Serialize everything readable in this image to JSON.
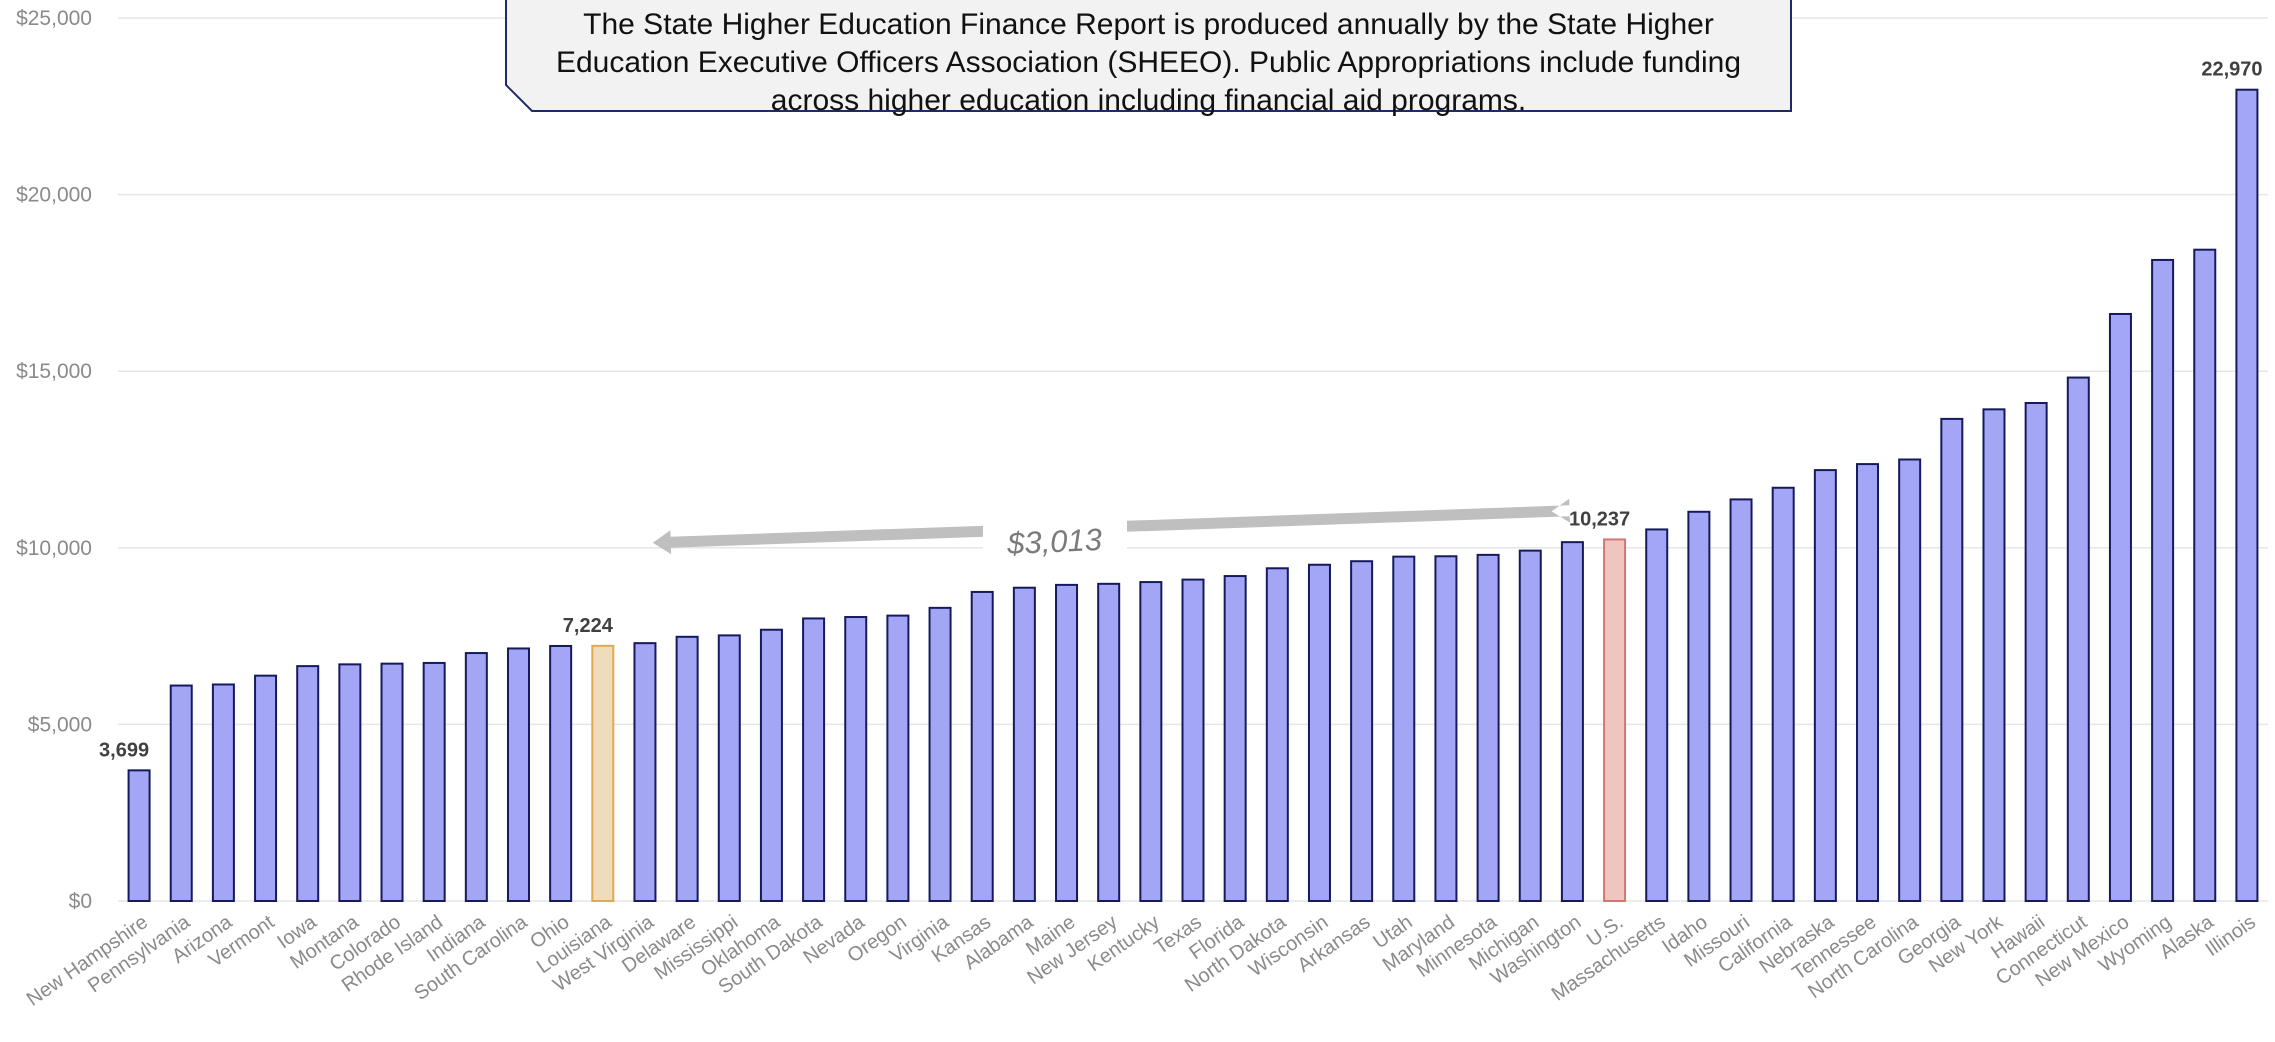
{
  "chart_data": {
    "type": "bar",
    "title": "",
    "xlabel": "",
    "ylabel": "",
    "ylim": [
      0,
      25000
    ],
    "yticks": [
      "$0",
      "$5,000",
      "$10,000",
      "$15,000",
      "$20,000",
      "$25,000"
    ],
    "grid": true,
    "categories": [
      "New Hampshire",
      "Pennsylvania",
      "Arizona",
      "Vermont",
      "Iowa",
      "Montana",
      "Colorado",
      "Rhode Island",
      "Indiana",
      "South Carolina",
      "Ohio",
      "Louisiana",
      "West Virginia",
      "Delaware",
      "Mississippi",
      "Oklahoma",
      "South Dakota",
      "Nevada",
      "Oregon",
      "Virginia",
      "Kansas",
      "Alabama",
      "Maine",
      "New Jersey",
      "Kentucky",
      "Texas",
      "Florida",
      "North Dakota",
      "Wisconsin",
      "Arkansas",
      "Utah",
      "Maryland",
      "Minnesota",
      "Michigan",
      "Washington",
      "U.S.",
      "Massachusetts",
      "Idaho",
      "Missouri",
      "California",
      "Nebraska",
      "Tennessee",
      "North Carolina",
      "Georgia",
      "New York",
      "Hawaii",
      "Connecticut",
      "New Mexico",
      "Wyoming",
      "Alaska",
      "Illinois"
    ],
    "values": [
      3699,
      6100,
      6130,
      6380,
      6650,
      6700,
      6720,
      6740,
      7020,
      7150,
      7220,
      7224,
      7300,
      7480,
      7520,
      7680,
      8000,
      8040,
      8080,
      8300,
      8750,
      8870,
      8950,
      8980,
      9030,
      9100,
      9200,
      9420,
      9520,
      9620,
      9750,
      9760,
      9800,
      9920,
      10160,
      10237,
      10520,
      11020,
      11370,
      11700,
      12200,
      12370,
      12500,
      13650,
      13920,
      14100,
      14820,
      16620,
      18150,
      18440,
      22970
    ],
    "data_labels": [
      {
        "category": "New Hampshire",
        "text": "3,699"
      },
      {
        "category": "Louisiana",
        "text": "7,224"
      },
      {
        "category": "U.S.",
        "text": "10,237"
      },
      {
        "category": "Illinois",
        "text": "22,970"
      }
    ],
    "highlight": {
      "Louisiana": {
        "fill": "#efdcbc",
        "stroke": "#e0a850"
      },
      "U.S.": {
        "fill": "#f0c4c0",
        "stroke": "#d07870"
      }
    },
    "colors": {
      "bar_fill": "#a3a6f5",
      "bar_stroke": "#151a5c",
      "grid": "#e6e6e6",
      "arrow": "#bfbfbf"
    },
    "annotation": {
      "text": "$3,013",
      "from": "U.S.",
      "to": "Louisiana"
    },
    "callout_text": "The State Higher Education Finance Report is produced annually by the State Higher Education Executive Officers Association (SHEEO). Public Appropriations include funding across higher education including financial aid programs."
  }
}
